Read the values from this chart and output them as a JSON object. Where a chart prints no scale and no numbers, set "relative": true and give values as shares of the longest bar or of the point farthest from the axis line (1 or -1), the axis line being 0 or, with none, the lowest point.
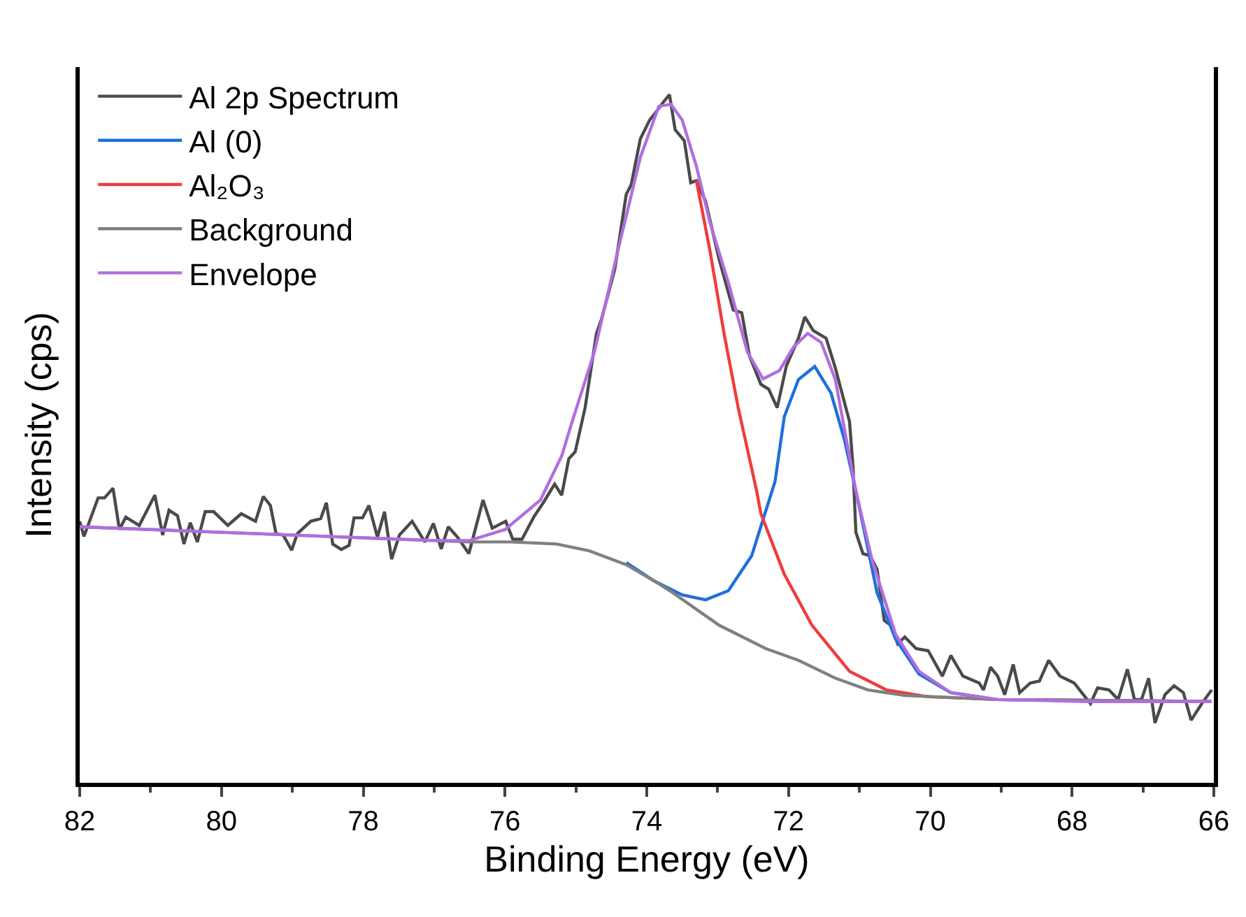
{
  "chart_data": {
    "type": "line",
    "xlabel": "Binding Energy (eV)",
    "ylabel": "Intensity (cps)",
    "relative": true,
    "xlim": [
      82,
      66
    ],
    "xticks": [
      82,
      80,
      78,
      76,
      74,
      72,
      70,
      68,
      66
    ],
    "legend": "top left",
    "marker": "none",
    "line_style": "solid",
    "series": [
      {
        "name": "Al 2p Spectrum",
        "color": "#4a4a4a",
        "x": [
          82.0,
          81.94,
          81.74,
          81.65,
          81.53,
          81.44,
          81.35,
          81.16,
          80.94,
          80.83,
          80.74,
          80.62,
          80.53,
          80.44,
          80.34,
          80.23,
          80.11,
          79.91,
          79.72,
          79.52,
          79.41,
          79.31,
          79.23,
          79.13,
          79.01,
          78.93,
          78.74,
          78.6,
          78.52,
          78.43,
          78.31,
          78.2,
          78.13,
          78.01,
          77.92,
          77.8,
          77.7,
          77.6,
          77.49,
          77.31,
          77.13,
          77.01,
          76.9,
          76.8,
          76.67,
          76.51,
          76.31,
          76.18,
          75.99,
          75.89,
          75.76,
          75.59,
          75.46,
          75.3,
          75.2,
          75.1,
          75.01,
          74.87,
          74.71,
          74.64,
          74.45,
          74.29,
          74.22,
          74.09,
          73.96,
          73.86,
          73.76,
          73.68,
          73.6,
          73.47,
          73.38,
          73.3,
          73.17,
          72.98,
          72.78,
          72.66,
          72.55,
          72.39,
          72.28,
          72.16,
          72.03,
          71.86,
          71.77,
          71.65,
          71.47,
          71.34,
          71.14,
          71.09,
          71.05,
          70.95,
          70.85,
          70.75,
          70.65,
          70.56,
          70.46,
          70.36,
          70.2,
          70.03,
          69.83,
          69.71,
          69.54,
          69.31,
          69.25,
          69.15,
          69.05,
          68.95,
          68.83,
          68.74,
          68.59,
          68.46,
          68.33,
          68.17,
          67.97,
          67.74,
          67.64,
          67.48,
          67.35,
          67.22,
          67.12,
          67.02,
          66.92,
          66.83,
          66.69,
          66.56,
          66.43,
          66.32,
          66.17,
          66.03
        ],
        "values": [
          0.38,
          0.358,
          0.414,
          0.414,
          0.428,
          0.368,
          0.386,
          0.374,
          0.418,
          0.36,
          0.396,
          0.388,
          0.347,
          0.378,
          0.35,
          0.394,
          0.394,
          0.374,
          0.391,
          0.38,
          0.416,
          0.403,
          0.362,
          0.36,
          0.338,
          0.362,
          0.38,
          0.384,
          0.407,
          0.347,
          0.339,
          0.345,
          0.385,
          0.385,
          0.403,
          0.357,
          0.394,
          0.325,
          0.36,
          0.38,
          0.35,
          0.377,
          0.34,
          0.372,
          0.357,
          0.333,
          0.411,
          0.37,
          0.38,
          0.354,
          0.354,
          0.387,
          0.407,
          0.434,
          0.418,
          0.471,
          0.481,
          0.545,
          0.653,
          0.673,
          0.747,
          0.855,
          0.869,
          0.936,
          0.963,
          0.976,
          0.99,
          1.0,
          0.949,
          0.933,
          0.872,
          0.875,
          0.845,
          0.761,
          0.687,
          0.683,
          0.62,
          0.579,
          0.572,
          0.545,
          0.606,
          0.646,
          0.677,
          0.657,
          0.646,
          0.603,
          0.525,
          0.459,
          0.364,
          0.333,
          0.33,
          0.31,
          0.236,
          0.229,
          0.202,
          0.212,
          0.195,
          0.192,
          0.155,
          0.185,
          0.155,
          0.145,
          0.135,
          0.168,
          0.155,
          0.128,
          0.172,
          0.131,
          0.145,
          0.148,
          0.178,
          0.155,
          0.145,
          0.115,
          0.138,
          0.135,
          0.121,
          0.165,
          0.121,
          0.121,
          0.152,
          0.087,
          0.128,
          0.141,
          0.131,
          0.091,
          0.115,
          0.135
        ]
      },
      {
        "name": "Al (0)",
        "color": "#1f6fdc",
        "x": [
          74.29,
          73.89,
          73.5,
          73.17,
          72.85,
          72.52,
          72.19,
          72.06,
          71.86,
          71.63,
          71.4,
          71.21,
          71.05,
          70.75,
          70.49,
          70.16,
          69.71,
          69.05,
          66.03
        ],
        "values": [
          0.32,
          0.293,
          0.273,
          0.266,
          0.279,
          0.33,
          0.438,
          0.532,
          0.586,
          0.605,
          0.566,
          0.498,
          0.424,
          0.276,
          0.209,
          0.158,
          0.131,
          0.121,
          0.118
        ]
      },
      {
        "name": "Al₂O₃",
        "color": "#f03c3c",
        "x": [
          73.3,
          73.11,
          72.91,
          72.71,
          72.45,
          72.39,
          72.06,
          71.67,
          71.14,
          70.62,
          70.03,
          69.05,
          66.03
        ],
        "values": [
          0.875,
          0.774,
          0.653,
          0.545,
          0.424,
          0.391,
          0.303,
          0.229,
          0.162,
          0.135,
          0.125,
          0.121,
          0.118
        ]
      },
      {
        "name": "Background",
        "color": "#808080",
        "x": [
          82.0,
          80.0,
          78.0,
          77.0,
          76.51,
          75.92,
          75.27,
          74.81,
          74.29,
          73.89,
          73.63,
          72.98,
          72.32,
          71.86,
          71.34,
          70.88,
          70.36,
          69.05,
          66.03
        ],
        "values": [
          0.372,
          0.364,
          0.356,
          0.352,
          0.35,
          0.35,
          0.347,
          0.337,
          0.317,
          0.293,
          0.276,
          0.229,
          0.195,
          0.178,
          0.152,
          0.135,
          0.127,
          0.121,
          0.118
        ]
      },
      {
        "name": "Envelope",
        "color": "#b06ee0",
        "x": [
          82.0,
          80.0,
          78.0,
          77.0,
          76.5,
          76.0,
          75.5,
          75.2,
          75.07,
          74.74,
          74.42,
          74.09,
          73.83,
          73.66,
          73.5,
          73.3,
          73.11,
          72.85,
          72.58,
          72.36,
          72.13,
          71.93,
          71.73,
          71.54,
          71.34,
          71.05,
          70.82,
          70.49,
          70.16,
          69.71,
          69.05,
          67.74,
          66.03
        ],
        "values": [
          0.372,
          0.364,
          0.356,
          0.352,
          0.352,
          0.368,
          0.411,
          0.475,
          0.519,
          0.626,
          0.768,
          0.909,
          0.983,
          0.986,
          0.963,
          0.896,
          0.815,
          0.727,
          0.626,
          0.587,
          0.599,
          0.633,
          0.653,
          0.64,
          0.586,
          0.424,
          0.323,
          0.216,
          0.162,
          0.131,
          0.121,
          0.118,
          0.118
        ]
      }
    ]
  }
}
